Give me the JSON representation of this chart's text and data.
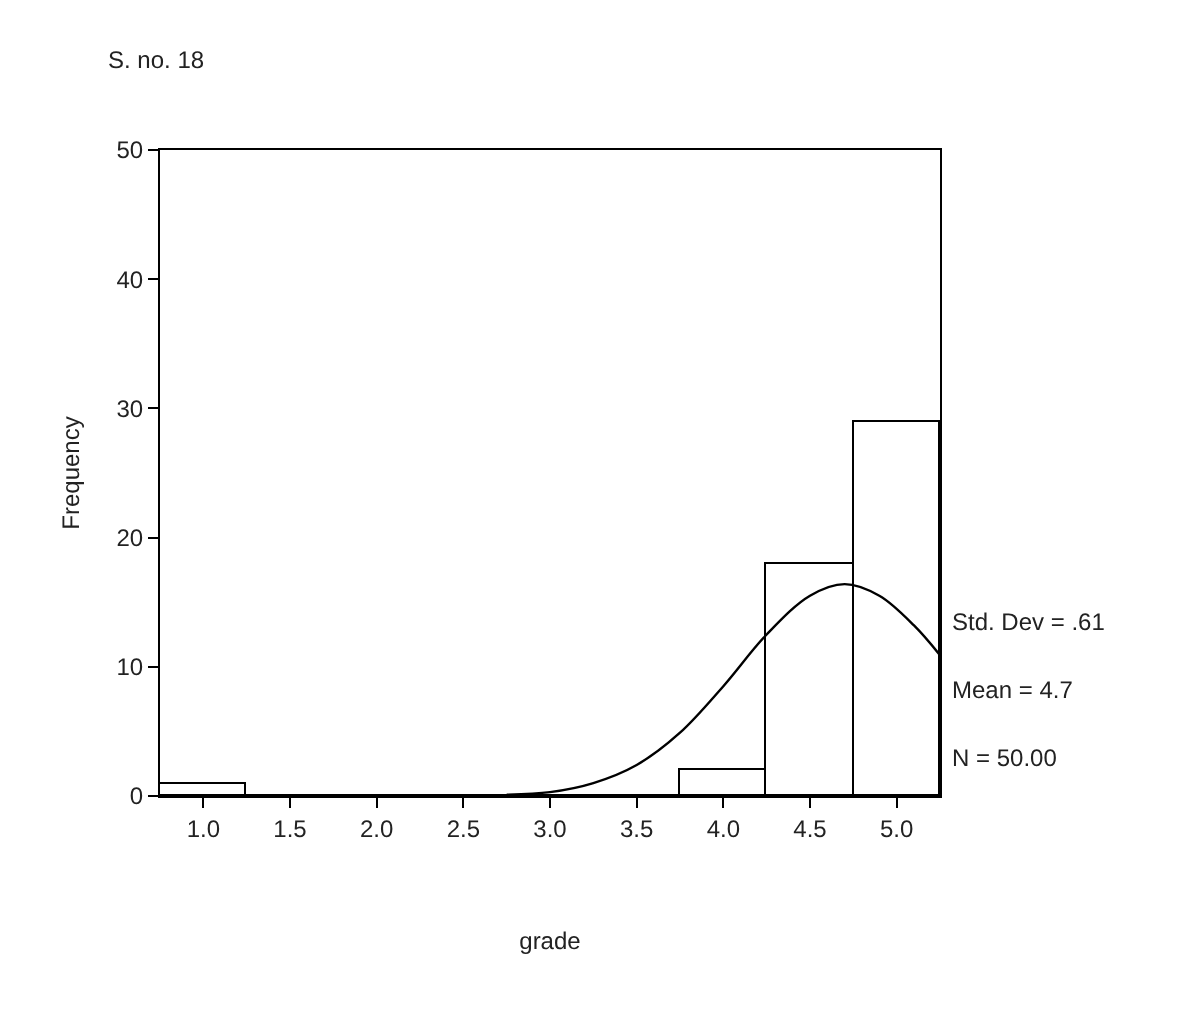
{
  "chart_data": {
    "type": "histogram",
    "title": "S. no. 18",
    "xlabel": "grade",
    "ylabel": "Frequency",
    "bins": [
      0.75,
      1.25,
      1.75,
      2.25,
      2.75,
      3.25,
      3.75,
      4.25,
      4.75,
      5.25
    ],
    "series": [
      {
        "color": "#ffffff",
        "values": [
          1,
          0,
          0,
          0,
          0,
          0,
          2,
          18,
          29
        ]
      },
      {
        "type": "line",
        "color": "#000000",
        "x": [
          2.75,
          3.0,
          3.25,
          3.5,
          3.75,
          4.0,
          4.25,
          4.5,
          4.7,
          4.9,
          5.1,
          5.25
        ],
        "values": [
          0.1,
          0.3,
          1.0,
          2.4,
          4.9,
          8.5,
          12.5,
          15.5,
          16.4,
          15.5,
          13.2,
          10.9
        ]
      }
    ],
    "xlim": [
      0.75,
      5.25
    ],
    "xticks": [
      {
        "value": 1.0,
        "label": "1.0"
      },
      {
        "value": 1.5,
        "label": "1.5"
      },
      {
        "value": 2.0,
        "label": "2.0"
      },
      {
        "value": 2.5,
        "label": "2.5"
      },
      {
        "value": 3.0,
        "label": "3.0"
      },
      {
        "value": 3.5,
        "label": "3.5"
      },
      {
        "value": 4.0,
        "label": "4.0"
      },
      {
        "value": 4.5,
        "label": "4.5"
      },
      {
        "value": 5.0,
        "label": "5.0"
      }
    ],
    "ylim": [
      0,
      50
    ],
    "yticks": [
      0,
      10,
      20,
      30,
      40,
      50
    ],
    "annotations": [
      "Std. Dev = .61",
      "Mean = 4.7",
      "N = 50.00"
    ]
  }
}
